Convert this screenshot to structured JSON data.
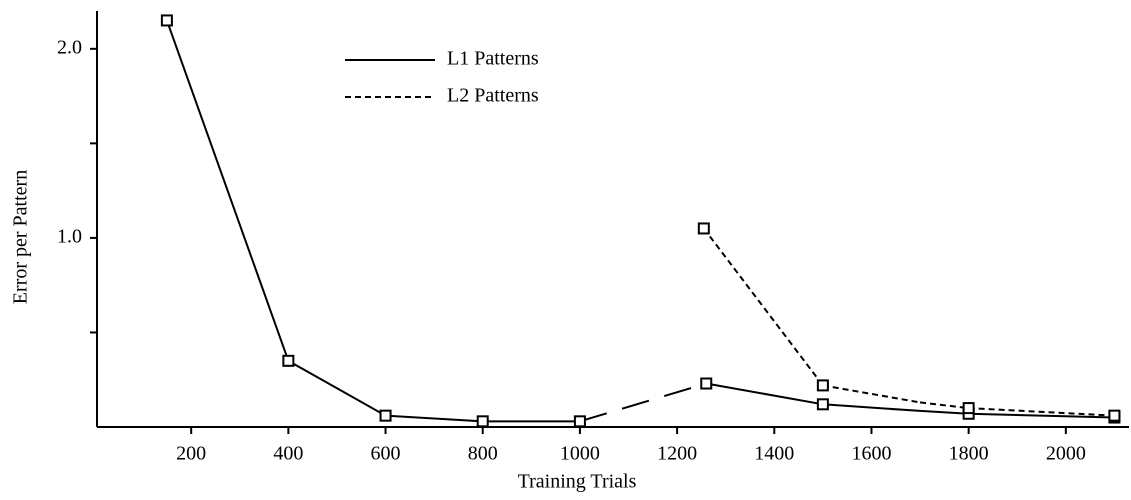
{
  "chart_data": {
    "type": "line",
    "xlabel": "Training Trials",
    "ylabel": "Error per Pattern",
    "xlim": [
      0,
      2130
    ],
    "ylim": [
      0,
      2.2
    ],
    "xticks": [
      200,
      400,
      600,
      800,
      1000,
      1200,
      1400,
      1600,
      1800,
      2000
    ],
    "yticks": [
      {
        "value": 1,
        "label": "1.0"
      },
      {
        "value": 2,
        "label": "2.0"
      }
    ],
    "yminor": [
      0.5,
      1.5
    ],
    "legend": "top-left",
    "series": [
      {
        "name": "L1 Patterns",
        "color": "#000000",
        "dash": "solid",
        "x": [
          150,
          400,
          600,
          800,
          1000,
          1260,
          1500,
          1700,
          1800,
          2100
        ],
        "values": [
          2.15,
          0.35,
          0.06,
          0.03,
          0.03,
          0.23,
          0.12,
          0.085,
          0.07,
          0.05
        ],
        "markers": [
          true,
          true,
          true,
          true,
          true,
          true,
          true,
          false,
          true,
          true
        ],
        "long_dash_segments": [
          4
        ]
      },
      {
        "name": "L2 Patterns",
        "color": "#000000",
        "dash": "short",
        "x": [
          1255,
          1500,
          1700,
          1800,
          2100
        ],
        "values": [
          1.05,
          0.22,
          0.13,
          0.1,
          0.06
        ],
        "markers": [
          true,
          true,
          false,
          true,
          true
        ],
        "long_dash_segments": []
      }
    ]
  }
}
